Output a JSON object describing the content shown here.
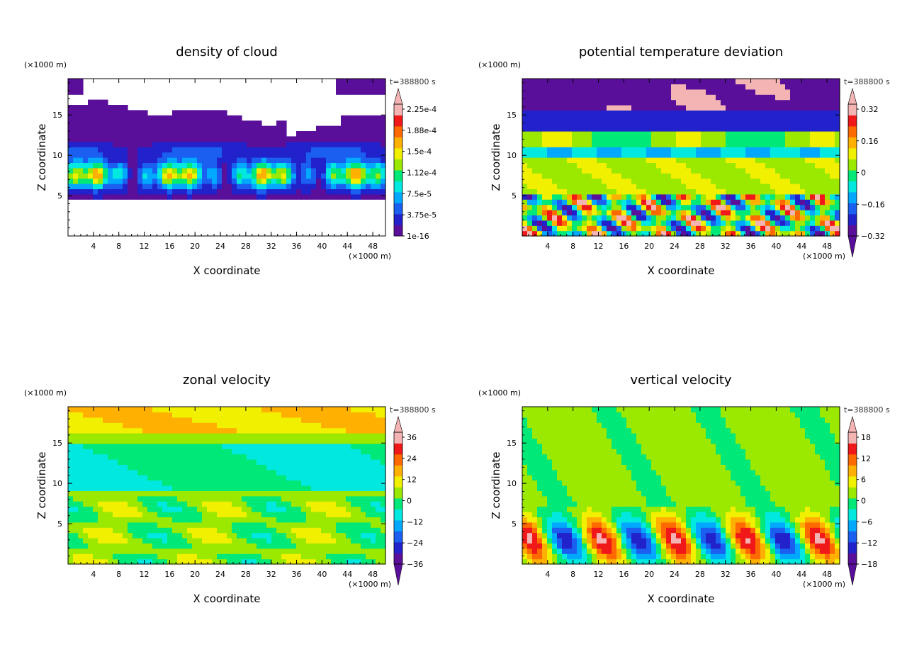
{
  "chart_data": [
    {
      "type": "heatmap",
      "title": "density of cloud",
      "xlabel": "X coordinate",
      "ylabel": "Z coordinate",
      "x_unit": "(×1000 m)",
      "y_unit": "(×1000 m)",
      "time_label": "t=388800 s",
      "xlim": [
        0,
        50
      ],
      "ylim": [
        0,
        19.5
      ],
      "x_ticks": [
        4,
        8,
        12,
        16,
        20,
        24,
        28,
        32,
        36,
        40,
        44,
        48
      ],
      "y_ticks": [
        5,
        10,
        15
      ],
      "colorbar": {
        "labels": [
          "2.25e-4",
          "1.88e-4",
          "1.5e-4",
          "1.12e-4",
          "7.5e-5",
          "3.75e-5",
          "1e-16"
        ],
        "colors": [
          "#5a0f9a",
          "#2222cc",
          "#1a5ff0",
          "#00a8ff",
          "#00e8e0",
          "#00e878",
          "#9be800",
          "#f0f000",
          "#ffb000",
          "#ff6a00",
          "#f01818",
          "#f5b4b4"
        ],
        "extend_low": false,
        "extend_high": true
      },
      "field": "cloud"
    },
    {
      "type": "heatmap",
      "title": "potential temperature deviation",
      "xlabel": "X coordinate",
      "ylabel": "Z coordinate",
      "x_unit": "(×1000 m)",
      "y_unit": "(×1000 m)",
      "time_label": "t=388800 s",
      "xlim": [
        0,
        50
      ],
      "ylim": [
        0,
        19.5
      ],
      "x_ticks": [
        4,
        8,
        12,
        16,
        20,
        24,
        28,
        32,
        36,
        40,
        44,
        48
      ],
      "y_ticks": [
        5,
        10,
        15
      ],
      "colorbar": {
        "labels": [
          "0.32",
          "0.16",
          "0",
          "−0.16",
          "−0.32"
        ],
        "colors": [
          "#5a0f9a",
          "#2222cc",
          "#1a5ff0",
          "#00a8ff",
          "#00e8e0",
          "#00e878",
          "#9be800",
          "#f0f000",
          "#ffb000",
          "#ff6a00",
          "#f01818",
          "#f5b4b4"
        ],
        "extend_low": true,
        "extend_high": true
      },
      "field": "theta"
    },
    {
      "type": "heatmap",
      "title": "zonal velocity",
      "xlabel": "X coordinate",
      "ylabel": "Z coordinate",
      "x_unit": "(×1000 m)",
      "y_unit": "(×1000 m)",
      "time_label": "t=388800 s",
      "xlim": [
        0,
        50
      ],
      "ylim": [
        0,
        19.5
      ],
      "x_ticks": [
        4,
        8,
        12,
        16,
        20,
        24,
        28,
        32,
        36,
        40,
        44,
        48
      ],
      "y_ticks": [
        5,
        10,
        15
      ],
      "colorbar": {
        "labels": [
          "36",
          "24",
          "12",
          "0",
          "−12",
          "−24",
          "−36"
        ],
        "colors": [
          "#5a0f9a",
          "#2222cc",
          "#1a5ff0",
          "#00a8ff",
          "#00e8e0",
          "#00e878",
          "#9be800",
          "#f0f000",
          "#ffb000",
          "#ff6a00",
          "#f01818",
          "#f5b4b4"
        ],
        "extend_low": true,
        "extend_high": true
      },
      "field": "u"
    },
    {
      "type": "heatmap",
      "title": "vertical velocity",
      "xlabel": "X coordinate",
      "ylabel": "Z coordinate",
      "x_unit": "(×1000 m)",
      "y_unit": "(×1000 m)",
      "time_label": "t=388800 s",
      "xlim": [
        0,
        50
      ],
      "ylim": [
        0,
        19.5
      ],
      "x_ticks": [
        4,
        8,
        12,
        16,
        20,
        24,
        28,
        32,
        36,
        40,
        44,
        48
      ],
      "y_ticks": [
        5,
        10,
        15
      ],
      "colorbar": {
        "labels": [
          "18",
          "12",
          "6",
          "0",
          "−6",
          "−12",
          "−18"
        ],
        "colors": [
          "#5a0f9a",
          "#2222cc",
          "#1a5ff0",
          "#00a8ff",
          "#00e8e0",
          "#00e878",
          "#9be800",
          "#f0f000",
          "#ffb000",
          "#ff6a00",
          "#f01818",
          "#f5b4b4"
        ],
        "extend_low": true,
        "extend_high": true
      },
      "field": "w"
    }
  ]
}
